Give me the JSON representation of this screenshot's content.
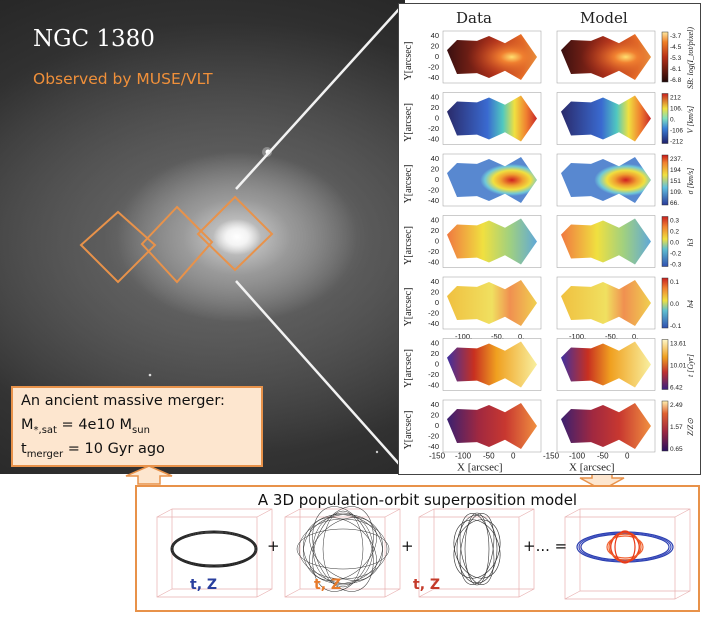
{
  "galaxy": {
    "name": "NGC 1380",
    "observed_by": "Observed by MUSE/VLT"
  },
  "merger_box": {
    "line1": "An ancient massive merger:",
    "mass_prefix": "M",
    "mass_sub": "*,sat",
    "mass_mid": " = 4e10 M",
    "mass_sub2": "sun",
    "time_prefix": "t",
    "time_sub": "merger",
    "time_mid": " = 10 Gyr ago"
  },
  "panel": {
    "col_data": "Data",
    "col_model": "Model",
    "y_label": "Y[arcsec]",
    "y_ticks": [
      "40",
      "20",
      "0",
      "-20",
      "-40"
    ],
    "x_ticks_mid": [
      "-100.",
      "-50.",
      "0."
    ],
    "x_ticks_bottom": [
      "-150",
      "-100",
      "-50",
      "0"
    ],
    "x_label": "X [arcsec]",
    "rows": [
      {
        "cbar_label": "SB: log(I_tot/pixel)",
        "cbar_ticks": [
          "-3.7",
          "-4.5",
          "-5.3",
          "-6.1",
          "-6.8"
        ],
        "cmap": "sb"
      },
      {
        "cbar_label": "V [km/s]",
        "cbar_ticks": [
          "212",
          "106.",
          "0.",
          "-106",
          "-212"
        ],
        "cmap": "vel"
      },
      {
        "cbar_label": "σ [km/s]",
        "cbar_ticks": [
          "237.",
          "194",
          "151",
          "109.",
          "66."
        ],
        "cmap": "sig"
      },
      {
        "cbar_label": "h3",
        "cbar_ticks": [
          "0.3",
          "0.2",
          "0.0",
          "-0.2",
          "-0.3"
        ],
        "cmap": "h3"
      },
      {
        "cbar_label": "h4",
        "cbar_ticks": [
          "0.1",
          "0.0",
          "-0.1"
        ],
        "cmap": "h4"
      },
      {
        "cbar_label": "t [Gyr]",
        "cbar_ticks": [
          "13.61",
          "10.01",
          "6.42"
        ],
        "cmap": "age"
      },
      {
        "cbar_label": "Z/Z⊙",
        "cbar_ticks": [
          "2.49",
          "1.57",
          "0.65"
        ],
        "cmap": "met"
      }
    ]
  },
  "bottom": {
    "title": "A 3D population-orbit superposition model",
    "plus": "+",
    "plus_more": "+...  =",
    "labels": [
      {
        "t": "t,",
        "z": "Z",
        "color": "#2a3f9e"
      },
      {
        "t": "t,",
        "z": "Z",
        "color": "#e87a2a"
      },
      {
        "t": "t,",
        "z": "Z",
        "color": "#c43a2a"
      }
    ]
  },
  "colors": {
    "accent_orange": "#e8924a",
    "box_fill": "#fde6cf"
  }
}
